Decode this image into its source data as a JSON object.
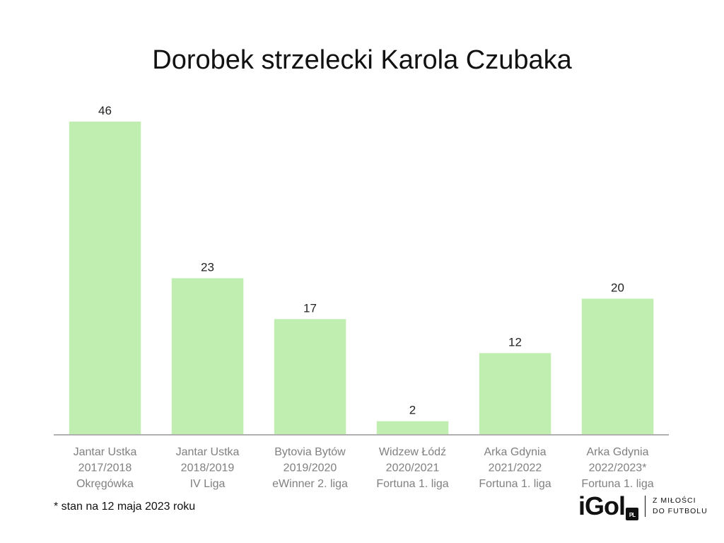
{
  "chart_data": {
    "type": "bar",
    "title": "Dorobek strzelecki Karola Czubaka",
    "xlabel": "",
    "ylabel": "",
    "categories": [
      [
        "Jantar Ustka",
        "2017/2018",
        "Okręgówka"
      ],
      [
        "Jantar Ustka",
        "2018/2019",
        "IV Liga"
      ],
      [
        "Bytovia Bytów",
        "2019/2020",
        "eWinner 2. liga"
      ],
      [
        "Widzew Łódź",
        "2020/2021",
        "Fortuna 1. liga"
      ],
      [
        "Arka Gdynia",
        "2021/2022",
        "Fortuna 1. liga"
      ],
      [
        "Arka Gdynia",
        "2022/2023*",
        "Fortuna 1. liga"
      ]
    ],
    "values": [
      46,
      23,
      17,
      2,
      12,
      20
    ],
    "ylim": [
      0,
      46
    ],
    "grid": false,
    "bar_color": "#c0eeb0",
    "axis_color": "#b0b0b0"
  },
  "footnote": "* stan na 12 maja 2023 roku",
  "logo": {
    "name": "iGol",
    "badge": "PL",
    "tagline_1": "Z MIŁOŚCI",
    "tagline_2": "DO FUTBOLU"
  }
}
